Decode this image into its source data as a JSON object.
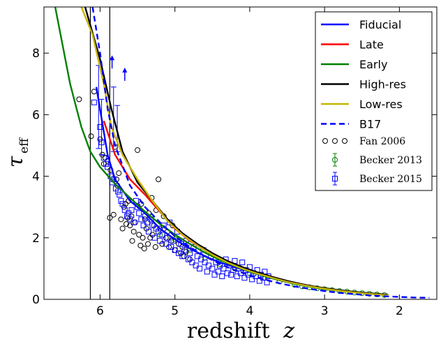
{
  "chart_data": {
    "type": "line",
    "title": "",
    "xlabel_prefix": "redshift",
    "xlabel_var": "z",
    "ylabel_main": "τ",
    "ylabel_sub": "eff",
    "x_reversed": true,
    "xlim": [
      6.75,
      1.5
    ],
    "ylim": [
      0,
      9.5
    ],
    "x_ticks": [
      6,
      5,
      4,
      3,
      2
    ],
    "x_tick_labels": [
      "6",
      "5",
      "4",
      "3",
      "2"
    ],
    "y_ticks": [
      0,
      2,
      4,
      6,
      8
    ],
    "y_tick_labels": [
      "0",
      "2",
      "4",
      "6",
      "8"
    ],
    "grid": false,
    "legend_position": "top-right",
    "vertical_lines": [
      6.13,
      5.87
    ],
    "series": [
      {
        "name": "Fiducial",
        "color": "#0000ff",
        "style": "solid",
        "x": [
          6.05,
          5.9,
          5.8,
          5.6,
          5.4,
          5.2,
          5.0,
          4.8,
          4.6,
          4.4,
          4.2,
          4.0,
          3.8,
          3.6,
          3.4,
          3.2,
          3.0,
          2.8,
          2.6,
          2.4,
          2.2
        ],
        "y": [
          6.9,
          4.7,
          3.9,
          3.2,
          2.8,
          2.3,
          1.95,
          1.65,
          1.4,
          1.2,
          1.05,
          0.9,
          0.75,
          0.62,
          0.5,
          0.42,
          0.35,
          0.28,
          0.23,
          0.19,
          0.15
        ]
      },
      {
        "name": "Late",
        "color": "#ff0000",
        "style": "solid",
        "x": [
          5.95,
          5.8,
          5.6,
          5.4,
          5.2,
          5.0,
          4.8,
          4.6,
          4.4,
          4.2,
          4.0,
          3.8,
          3.6,
          3.4,
          3.2,
          3.0,
          2.8,
          2.6,
          2.4,
          2.2
        ],
        "y": [
          5.8,
          4.7,
          3.9,
          3.4,
          2.85,
          2.3,
          1.9,
          1.6,
          1.35,
          1.15,
          0.95,
          0.8,
          0.66,
          0.54,
          0.44,
          0.36,
          0.29,
          0.23,
          0.19,
          0.15
        ]
      },
      {
        "name": "Early",
        "color": "#008000",
        "style": "solid",
        "x": [
          6.6,
          6.4,
          6.25,
          6.13,
          6.0,
          5.8,
          5.6,
          5.4,
          5.2,
          5.0,
          4.8,
          4.6,
          4.4,
          4.2,
          4.0,
          3.8,
          3.6,
          3.4,
          3.2,
          3.0,
          2.8,
          2.6,
          2.4,
          2.2
        ],
        "y": [
          9.5,
          7.0,
          5.6,
          4.8,
          4.3,
          3.75,
          3.3,
          2.85,
          2.45,
          2.1,
          1.8,
          1.52,
          1.28,
          1.08,
          0.9,
          0.75,
          0.62,
          0.5,
          0.41,
          0.33,
          0.27,
          0.22,
          0.18,
          0.14
        ]
      },
      {
        "name": "High-res",
        "color": "#000000",
        "style": "solid",
        "x": [
          6.2,
          6.0,
          5.85,
          5.7,
          5.5,
          5.3,
          5.1,
          4.9,
          4.7,
          4.5,
          4.3,
          4.1,
          3.9,
          3.7,
          3.5,
          3.3,
          3.1,
          2.9,
          2.7,
          2.5,
          2.3,
          2.15
        ],
        "y": [
          9.5,
          7.8,
          6.2,
          4.8,
          3.8,
          3.2,
          2.6,
          2.15,
          1.8,
          1.5,
          1.25,
          1.05,
          0.88,
          0.73,
          0.6,
          0.49,
          0.4,
          0.33,
          0.27,
          0.22,
          0.18,
          0.15
        ]
      },
      {
        "name": "Low-res",
        "color": "#c8b400",
        "style": "solid",
        "x": [
          6.25,
          6.1,
          5.95,
          5.85,
          5.7,
          5.5,
          5.3,
          5.1,
          4.9,
          4.7,
          4.5,
          4.3,
          4.1,
          3.9,
          3.7,
          3.5,
          3.3,
          3.1,
          2.9,
          2.7,
          2.5,
          2.3,
          2.15
        ],
        "y": [
          9.5,
          8.6,
          7.0,
          5.6,
          4.7,
          3.9,
          3.2,
          2.55,
          2.1,
          1.75,
          1.45,
          1.2,
          1.0,
          0.84,
          0.7,
          0.57,
          0.47,
          0.38,
          0.31,
          0.25,
          0.2,
          0.16,
          0.13
        ]
      },
      {
        "name": "B17",
        "color": "#0000ff",
        "style": "dashed",
        "x": [
          6.1,
          6.0,
          5.9,
          5.8,
          5.6,
          5.4,
          5.2,
          5.0,
          4.8,
          4.6,
          4.4,
          4.2,
          4.0,
          3.8,
          3.6,
          3.4,
          3.2,
          3.0,
          2.8,
          2.6,
          2.4,
          2.2,
          2.0,
          1.8,
          1.6
        ],
        "y": [
          9.5,
          8.0,
          6.2,
          5.0,
          3.7,
          3.0,
          2.5,
          2.05,
          1.7,
          1.4,
          1.15,
          0.95,
          0.78,
          0.64,
          0.52,
          0.42,
          0.34,
          0.27,
          0.21,
          0.17,
          0.13,
          0.1,
          0.08,
          0.06,
          0.05
        ]
      }
    ],
    "scatter_series": [
      {
        "name": "Fan 2006",
        "color": "#000000",
        "marker": "circle",
        "points": [
          [
            6.28,
            6.5
          ],
          [
            6.12,
            5.3
          ],
          [
            6.08,
            6.75
          ],
          [
            6.0,
            5.2
          ],
          [
            5.97,
            4.7
          ],
          [
            5.95,
            4.4
          ],
          [
            5.93,
            4.6
          ],
          [
            5.9,
            4.5
          ],
          [
            5.87,
            2.65
          ],
          [
            5.86,
            4.2
          ],
          [
            5.82,
            2.75
          ],
          [
            5.8,
            4.95
          ],
          [
            5.78,
            3.9
          ],
          [
            5.77,
            3.7
          ],
          [
            5.75,
            4.1
          ],
          [
            5.72,
            2.6
          ],
          [
            5.7,
            2.3
          ],
          [
            5.68,
            3.0
          ],
          [
            5.66,
            3.1
          ],
          [
            5.65,
            2.45
          ],
          [
            5.63,
            2.65
          ],
          [
            5.62,
            3.2
          ],
          [
            5.6,
            2.4
          ],
          [
            5.58,
            2.7
          ],
          [
            5.57,
            1.9
          ],
          [
            5.55,
            2.2
          ],
          [
            5.53,
            2.5
          ],
          [
            5.5,
            4.85
          ],
          [
            5.48,
            2.1
          ],
          [
            5.46,
            1.75
          ],
          [
            5.45,
            3.1
          ],
          [
            5.43,
            2.0
          ],
          [
            5.41,
            1.65
          ],
          [
            5.4,
            2.6
          ],
          [
            5.38,
            2.3
          ],
          [
            5.36,
            1.8
          ],
          [
            5.35,
            2.8
          ],
          [
            5.33,
            2.0
          ],
          [
            5.31,
            3.3
          ],
          [
            5.3,
            2.1
          ],
          [
            5.28,
            2.4
          ],
          [
            5.26,
            1.7
          ],
          [
            5.25,
            2.9
          ],
          [
            5.22,
            3.9
          ],
          [
            5.2,
            2.3
          ],
          [
            5.17,
            1.8
          ],
          [
            5.15,
            2.7
          ],
          [
            5.12,
            2.0
          ],
          [
            5.1,
            2.2
          ],
          [
            5.08,
            1.7
          ],
          [
            5.05,
            1.9
          ],
          [
            5.03,
            2.4
          ],
          [
            5.0,
            1.6
          ],
          [
            4.98,
            2.0
          ],
          [
            4.95,
            1.8
          ],
          [
            4.92,
            1.5
          ],
          [
            4.9,
            1.7
          ],
          [
            4.88,
            1.4
          ],
          [
            4.85,
            1.55
          ],
          [
            4.8,
            1.3
          ]
        ]
      },
      {
        "name": "Becker 2013",
        "color": "#008000",
        "marker": "circle",
        "points": [
          [
            5.2,
            2.1
          ],
          [
            5.0,
            1.95
          ],
          [
            4.8,
            1.6
          ],
          [
            4.6,
            1.35
          ],
          [
            4.4,
            1.15
          ],
          [
            4.2,
            1.0
          ],
          [
            4.0,
            0.85
          ],
          [
            3.8,
            0.7
          ],
          [
            3.6,
            0.58
          ],
          [
            3.4,
            0.47
          ],
          [
            3.3,
            0.42
          ],
          [
            3.2,
            0.39
          ],
          [
            3.1,
            0.36
          ],
          [
            3.0,
            0.33
          ],
          [
            2.9,
            0.3
          ],
          [
            2.8,
            0.27
          ],
          [
            2.7,
            0.25
          ],
          [
            2.6,
            0.22
          ],
          [
            2.5,
            0.2
          ],
          [
            2.4,
            0.18
          ],
          [
            2.3,
            0.16
          ],
          [
            2.2,
            0.14
          ]
        ]
      },
      {
        "name": "Becker 2015",
        "color": "#0000ff",
        "marker": "square",
        "points": [
          [
            6.08,
            6.4
          ],
          [
            6.0,
            5.6
          ],
          [
            5.98,
            5.1
          ],
          [
            5.95,
            4.6
          ],
          [
            5.92,
            4.4
          ],
          [
            5.9,
            4.3
          ],
          [
            5.86,
            4.0
          ],
          [
            5.84,
            3.8
          ],
          [
            5.82,
            3.9
          ],
          [
            5.79,
            3.6
          ],
          [
            5.76,
            3.5
          ],
          [
            5.74,
            3.4
          ],
          [
            5.72,
            3.2
          ],
          [
            5.7,
            3.1
          ],
          [
            5.67,
            2.9
          ],
          [
            5.64,
            2.7
          ],
          [
            5.62,
            2.8
          ],
          [
            5.6,
            2.6
          ],
          [
            5.58,
            2.9
          ],
          [
            5.55,
            2.5
          ],
          [
            5.52,
            3.2
          ],
          [
            5.5,
            3.0
          ],
          [
            5.48,
            2.8
          ],
          [
            5.45,
            2.6
          ],
          [
            5.42,
            2.4
          ],
          [
            5.4,
            2.7
          ],
          [
            5.37,
            2.5
          ],
          [
            5.35,
            2.2
          ],
          [
            5.32,
            2.6
          ],
          [
            5.3,
            2.4
          ],
          [
            5.27,
            2.0
          ],
          [
            5.25,
            2.3
          ],
          [
            5.22,
            2.2
          ],
          [
            5.2,
            1.9
          ],
          [
            5.17,
            2.1
          ],
          [
            5.15,
            2.4
          ],
          [
            5.12,
            1.8
          ],
          [
            5.1,
            2.0
          ],
          [
            5.07,
            2.5
          ],
          [
            5.05,
            1.7
          ],
          [
            5.02,
            1.9
          ],
          [
            5.0,
            1.6
          ],
          [
            4.97,
            2.2
          ],
          [
            4.95,
            1.5
          ],
          [
            4.92,
            1.8
          ],
          [
            4.9,
            1.4
          ],
          [
            4.87,
            1.6
          ],
          [
            4.85,
            1.9
          ],
          [
            4.82,
            1.3
          ],
          [
            4.8,
            1.5
          ],
          [
            4.77,
            1.2
          ],
          [
            4.75,
            1.7
          ],
          [
            4.72,
            1.1
          ],
          [
            4.7,
            1.4
          ],
          [
            4.67,
            1.0
          ],
          [
            4.65,
            1.3
          ],
          [
            4.62,
            1.6
          ],
          [
            4.6,
            1.2
          ],
          [
            4.57,
            0.9
          ],
          [
            4.55,
            1.1
          ],
          [
            4.52,
            1.4
          ],
          [
            4.5,
            1.0
          ],
          [
            4.47,
            0.8
          ],
          [
            4.45,
            1.2
          ],
          [
            4.42,
            0.9
          ],
          [
            4.4,
            1.1
          ],
          [
            4.37,
            0.75
          ],
          [
            4.35,
            1.0
          ],
          [
            4.32,
            1.3
          ],
          [
            4.3,
            0.85
          ],
          [
            4.27,
            1.1
          ],
          [
            4.25,
            0.8
          ],
          [
            4.22,
            0.95
          ],
          [
            4.2,
            1.25
          ],
          [
            4.17,
            0.75
          ],
          [
            4.15,
            1.0
          ],
          [
            4.12,
            0.85
          ],
          [
            4.1,
            1.2
          ],
          [
            4.07,
            0.7
          ],
          [
            4.05,
            0.95
          ],
          [
            4.02,
            0.8
          ],
          [
            4.0,
            1.05
          ],
          [
            3.97,
            0.65
          ],
          [
            3.95,
            0.85
          ],
          [
            3.92,
            0.75
          ],
          [
            3.9,
            0.95
          ],
          [
            3.87,
            0.6
          ],
          [
            3.85,
            0.8
          ],
          [
            3.82,
            0.7
          ],
          [
            3.8,
            0.9
          ],
          [
            3.77,
            0.55
          ],
          [
            3.75,
            0.75
          ]
        ]
      }
    ],
    "error_bars": [
      {
        "x": 6.02,
        "y": 6.0,
        "low": 4.9,
        "high": 7.6,
        "color": "#0000ff"
      },
      {
        "x": 5.98,
        "y": 5.6,
        "low": 4.7,
        "high": 6.5,
        "color": "#0000ff"
      },
      {
        "x": 5.82,
        "y": 5.6,
        "low": 4.8,
        "high": 6.9,
        "color": "#0000ff"
      },
      {
        "x": 5.77,
        "y": 5.5,
        "low": 4.8,
        "high": 6.3,
        "color": "#0000ff"
      }
    ],
    "lower_limits": [
      {
        "x": 5.84,
        "y": 7.5,
        "color": "#0000ff"
      },
      {
        "x": 5.67,
        "y": 7.1,
        "color": "#0000ff"
      }
    ]
  }
}
